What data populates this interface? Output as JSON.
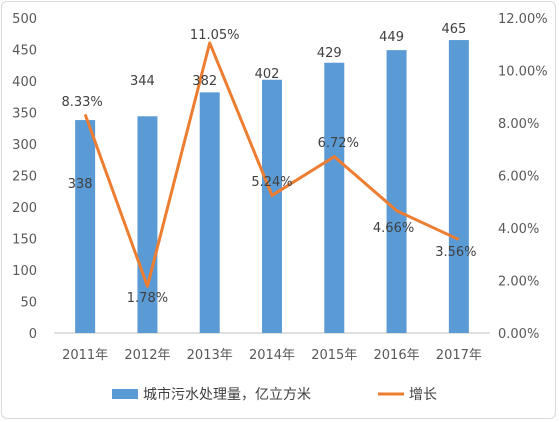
{
  "chart_data": {
    "type": "bar",
    "categories": [
      "2011年",
      "2012年",
      "2013年",
      "2014年",
      "2015年",
      "2016年",
      "2017年"
    ],
    "series": [
      {
        "name": "城市污水处理量，亿立方米",
        "type": "bar",
        "axis": "left",
        "values": [
          338,
          344,
          382,
          402,
          429,
          449,
          465
        ],
        "color": "#5b9bd5"
      },
      {
        "name": "增长",
        "type": "line",
        "axis": "right",
        "values": [
          8.33,
          1.78,
          11.05,
          5.24,
          6.72,
          4.66,
          3.56
        ],
        "color": "#ed7d31"
      }
    ],
    "bar_labels": [
      "338",
      "344",
      "382",
      "402",
      "429",
      "449",
      "465"
    ],
    "line_labels": [
      "8.33%",
      "1.78%",
      "11.05%",
      "5.24%",
      "6.72%",
      "4.66%",
      "3.56%"
    ],
    "left_axis": {
      "ylim": [
        0,
        500
      ],
      "ticks": [
        "0",
        "50",
        "100",
        "150",
        "200",
        "250",
        "300",
        "350",
        "400",
        "450",
        "500"
      ]
    },
    "right_axis": {
      "ylim": [
        0,
        12
      ],
      "ticks": [
        "0.00%",
        "2.00%",
        "4.00%",
        "6.00%",
        "8.00%",
        "10.00%",
        "12.00%"
      ]
    },
    "grid": false,
    "legend": {
      "position": "bottom",
      "entries": [
        "城市污水处理量，亿立方米",
        "增长"
      ]
    }
  }
}
